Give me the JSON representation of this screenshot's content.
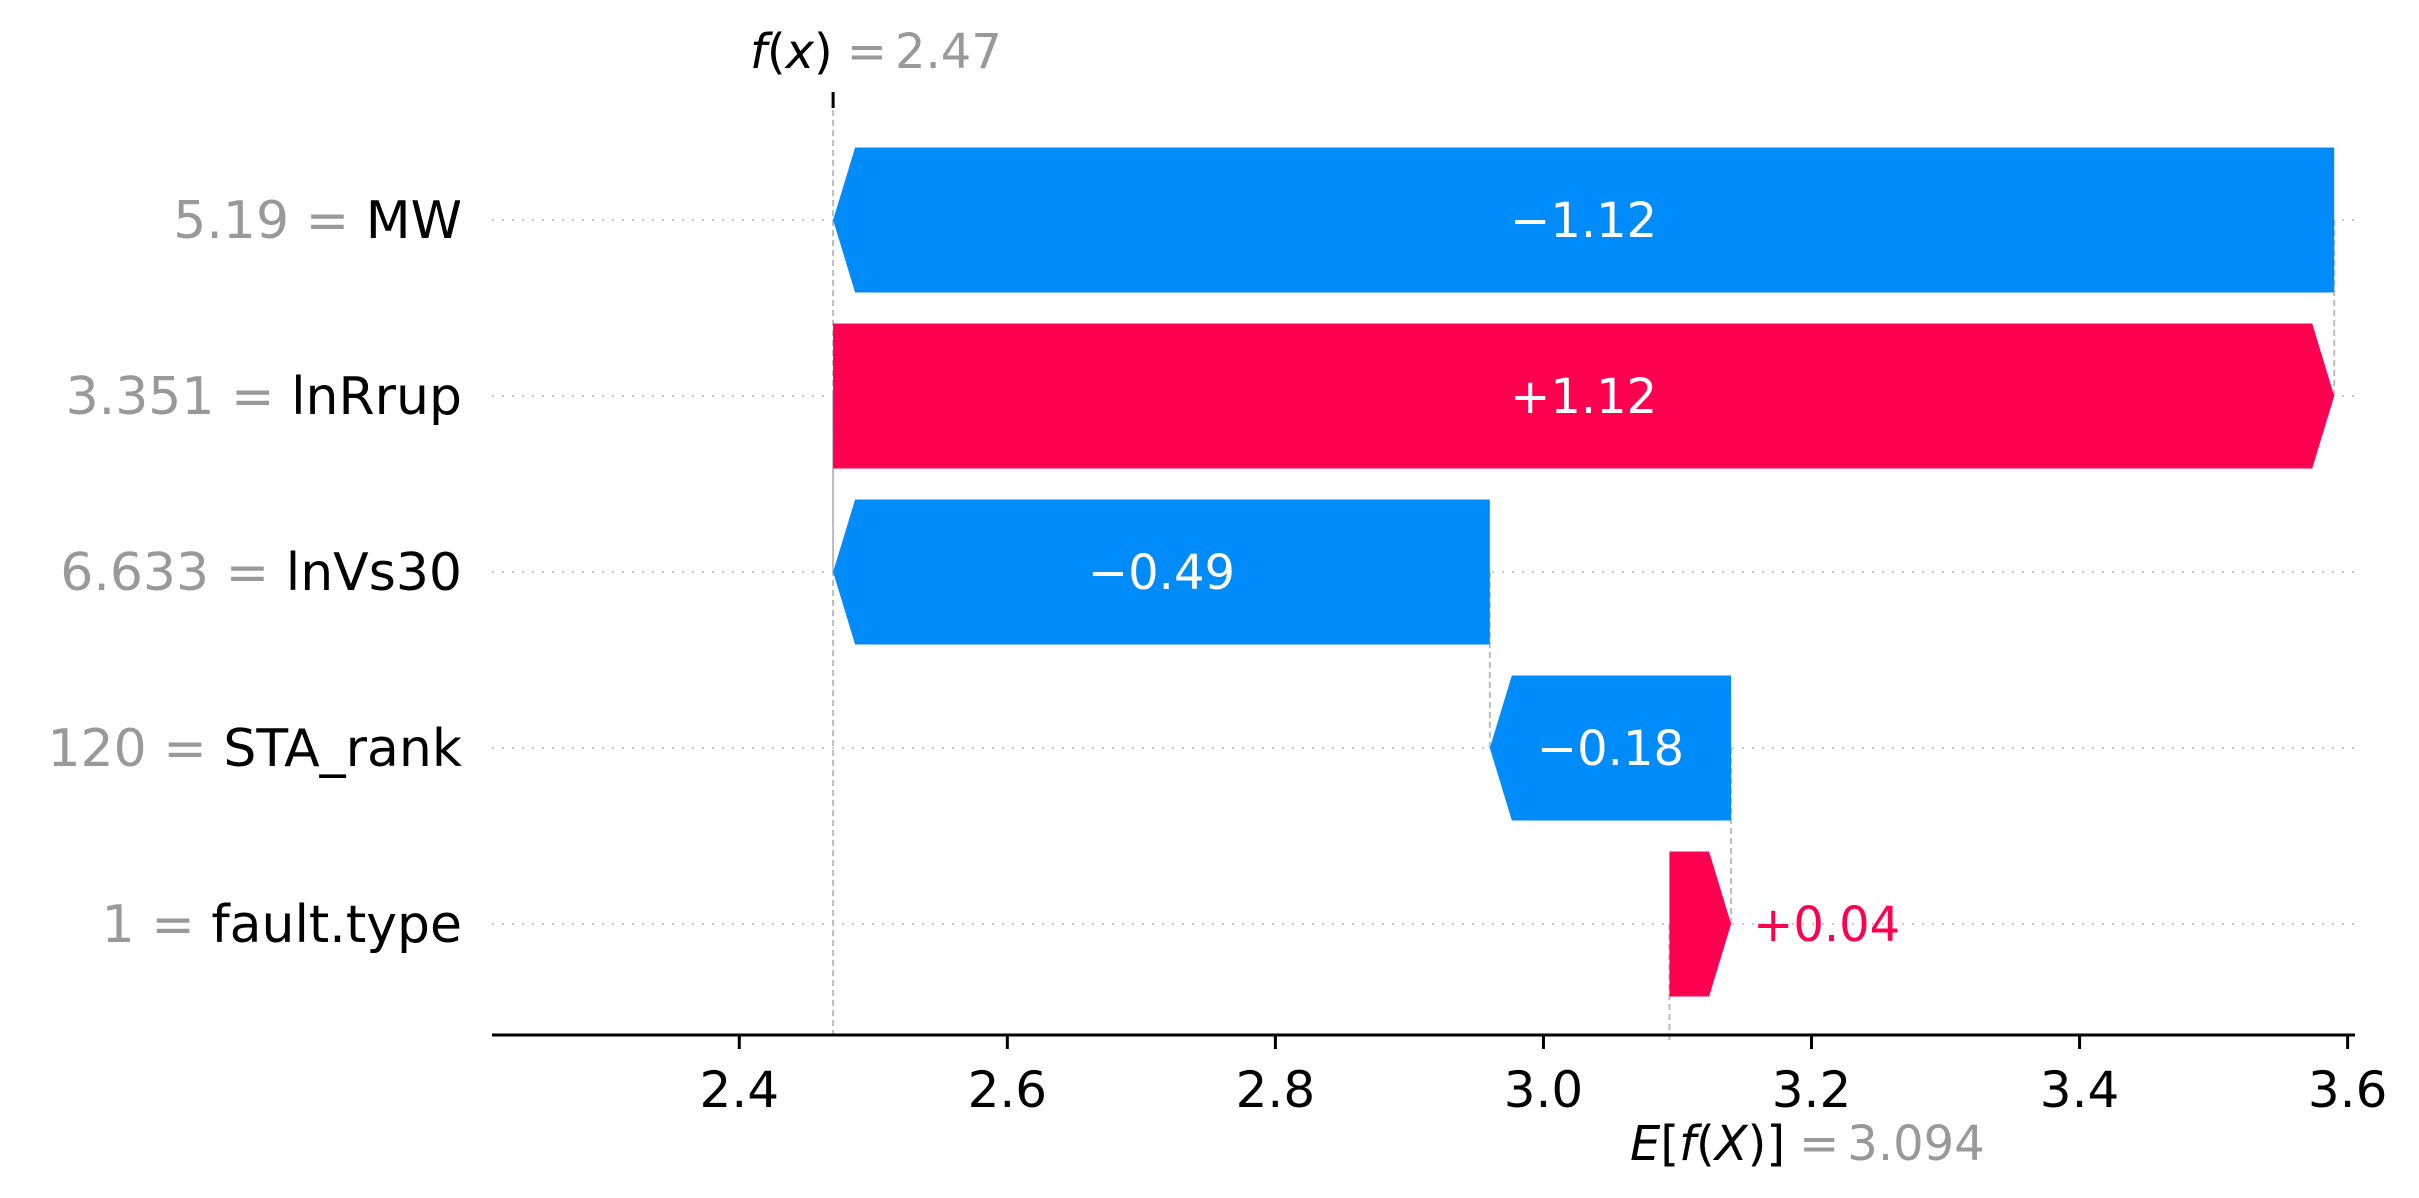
{
  "chart_data": {
    "type": "waterfall",
    "fx": {
      "label_fn": "f",
      "label_arg": "x",
      "value": "2.47",
      "x": 2.47
    },
    "efx": {
      "label_e": "E",
      "label_fn": "f",
      "label_arg": "X",
      "value": "3.094",
      "x": 3.094
    },
    "features": [
      {
        "value": "5.19",
        "name": "MW",
        "contribution": -1.12,
        "label": "−1.12",
        "start": 3.59,
        "end": 2.47
      },
      {
        "value": "3.351",
        "name": "lnRrup",
        "contribution": 1.12,
        "label": "+1.12",
        "start": 2.47,
        "end": 3.59
      },
      {
        "value": "6.633",
        "name": "lnVs30",
        "contribution": -0.49,
        "label": "−0.49",
        "start": 2.96,
        "end": 2.47
      },
      {
        "value": "120",
        "name": "STA_rank",
        "contribution": -0.18,
        "label": "−0.18",
        "start": 3.14,
        "end": 2.96
      },
      {
        "value": "1",
        "name": "fault.type",
        "contribution": 0.04,
        "label": "+0.04",
        "start": 3.094,
        "end": 3.14
      }
    ],
    "xaxis": {
      "ticks": [
        2.4,
        2.6,
        2.8,
        3.0,
        3.2,
        3.4,
        3.6
      ],
      "tick_labels": [
        "2.4",
        "2.6",
        "2.8",
        "3.0",
        "3.2",
        "3.4",
        "3.6"
      ],
      "range": [
        2.2155,
        3.6055
      ]
    },
    "colors": {
      "positive": "#ff0051",
      "negative": "#008bfb",
      "muted": "#999999",
      "text": "#000000"
    }
  }
}
